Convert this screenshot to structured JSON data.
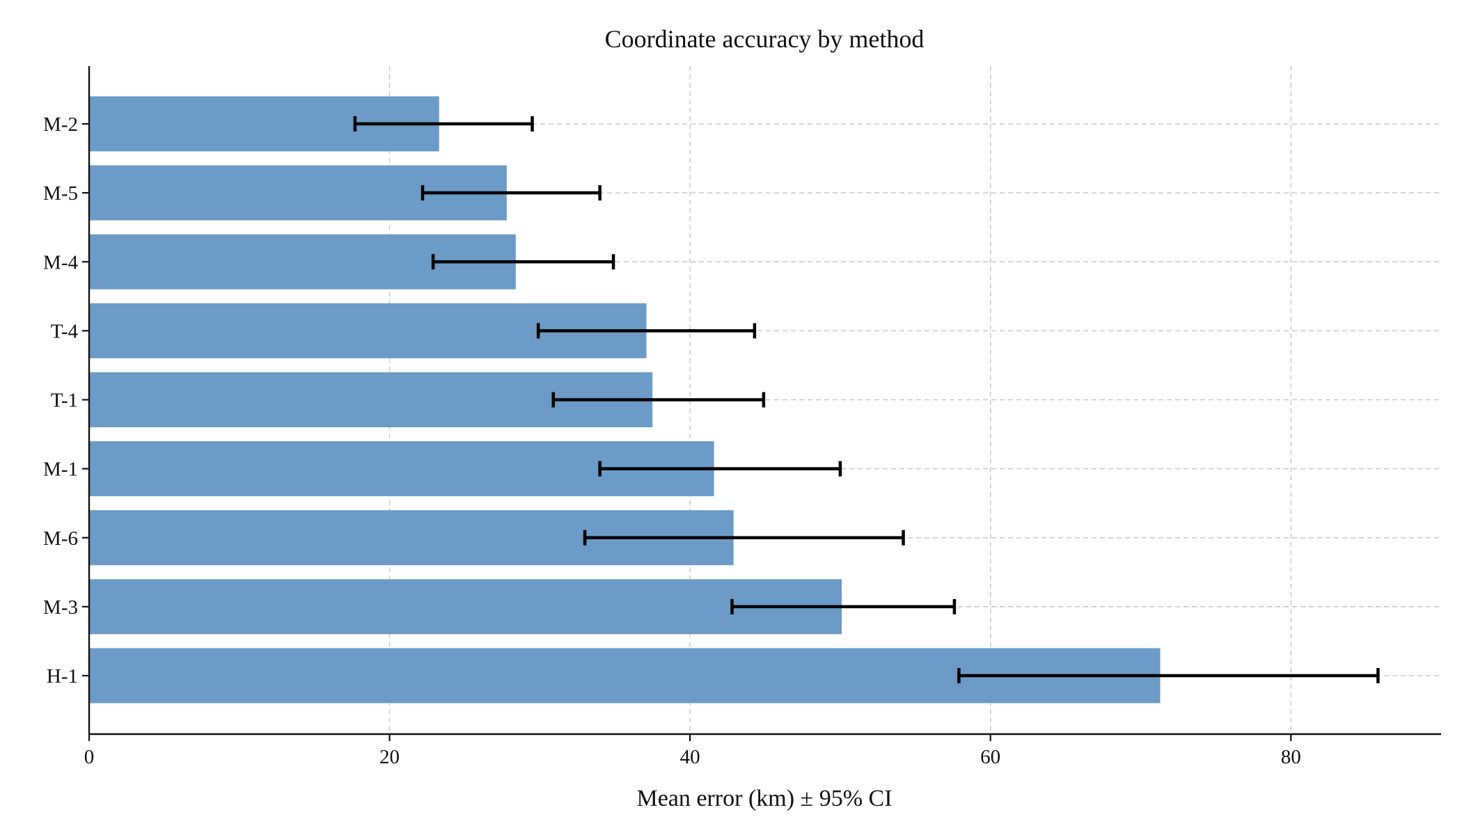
{
  "chart_data": {
    "type": "bar",
    "orientation": "horizontal",
    "title": "Coordinate accuracy by method",
    "xlabel": "Mean error (km) ± 95% CI",
    "ylabel": "",
    "xlim": [
      0,
      90
    ],
    "xticks": [
      0,
      20,
      40,
      60,
      80
    ],
    "grid": true,
    "bar_color": "#6b9bc6",
    "error_color": "#000000",
    "categories": [
      "M-2",
      "M-5",
      "M-4",
      "T-4",
      "T-1",
      "M-1",
      "M-6",
      "M-3",
      "H-1"
    ],
    "values": [
      23.3,
      27.8,
      28.4,
      37.1,
      37.5,
      41.6,
      42.9,
      50.1,
      71.3
    ],
    "ci_low": [
      17.7,
      22.2,
      22.9,
      29.9,
      30.9,
      34.0,
      33.0,
      42.8,
      57.9
    ],
    "ci_high": [
      29.5,
      34.0,
      34.9,
      44.3,
      44.9,
      50.0,
      54.2,
      57.6,
      85.8
    ]
  }
}
